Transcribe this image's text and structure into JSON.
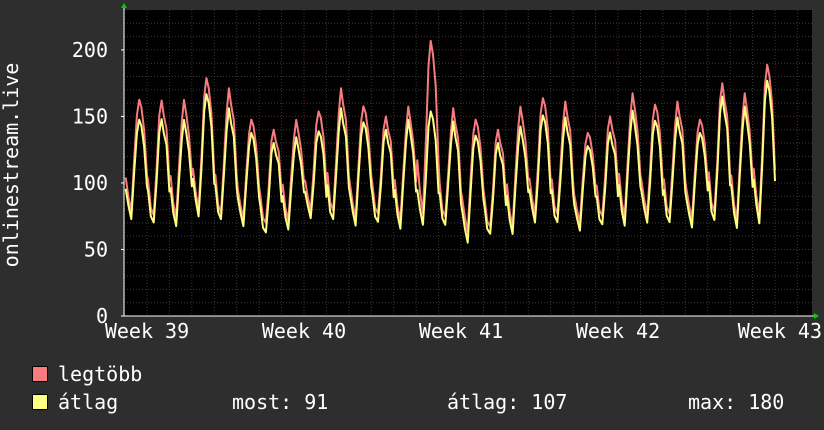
{
  "colors": {
    "background": "#2e2e2e",
    "plot_background": "#000000",
    "grid_minor": "#3a3a3a",
    "grid_major": "#5a2a2a",
    "legtobb": "#f77b7f",
    "atlag": "#ffff80",
    "axis_arrow": "#00cc00"
  },
  "chart_data": {
    "type": "line",
    "ylabel": "onlinestream.live",
    "ylim": [
      0,
      230
    ],
    "yticks": [
      "0",
      "50",
      "100",
      "150",
      "200"
    ],
    "xticks": [
      "Week 39",
      "Week 40",
      "Week 41",
      "Week 42",
      "Week 43"
    ],
    "grid": true,
    "days": 29,
    "series": [
      {
        "name": "legtöbb",
        "color": "#f77b7f",
        "daily_peak": [
          165,
          162,
          160,
          180,
          170,
          150,
          140,
          145,
          155,
          170,
          160,
          150,
          155,
          208,
          155,
          150,
          140,
          155,
          165,
          160,
          140,
          150,
          165,
          160,
          160,
          150,
          175,
          165,
          190
        ],
        "daily_low": [
          75,
          70,
          72,
          75,
          70,
          70,
          65,
          70,
          75,
          72,
          70,
          72,
          70,
          70,
          68,
          60,
          62,
          65,
          72,
          70,
          68,
          70,
          72,
          72,
          70,
          70,
          72,
          70,
          70
        ]
      },
      {
        "name": "átlag",
        "color": "#ffff80",
        "daily_peak": [
          150,
          148,
          145,
          168,
          155,
          140,
          130,
          132,
          140,
          155,
          148,
          140,
          145,
          155,
          145,
          138,
          130,
          140,
          152,
          148,
          130,
          138,
          152,
          148,
          148,
          140,
          165,
          155,
          178
        ],
        "daily_low": [
          70,
          65,
          66,
          70,
          66,
          65,
          58,
          64,
          70,
          66,
          65,
          66,
          64,
          64,
          62,
          52,
          57,
          60,
          66,
          64,
          62,
          64,
          66,
          66,
          64,
          64,
          66,
          64,
          64
        ]
      }
    ]
  },
  "legend": {
    "items": [
      {
        "label": "legtöbb",
        "color": "#f77b7f"
      },
      {
        "label": "átlag",
        "color": "#ffff80"
      }
    ],
    "stats": {
      "most": "most: 91",
      "atlag": "átlag: 107",
      "max": "max: 180"
    }
  }
}
